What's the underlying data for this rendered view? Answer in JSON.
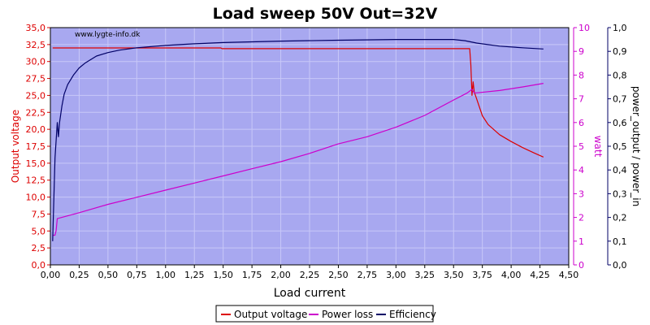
{
  "chart_data": {
    "type": "line",
    "title": "Load sweep 50V Out=32V",
    "watermark": "www.lygte-info.dk",
    "xlabel": "Load current",
    "xlim": [
      0,
      4.5
    ],
    "x_ticks": [
      "0,00",
      "0,25",
      "0,50",
      "0,75",
      "1,00",
      "1,25",
      "1,50",
      "1,75",
      "2,00",
      "2,25",
      "2,50",
      "2,75",
      "3,00",
      "3,25",
      "3,50",
      "3,75",
      "4,00",
      "4,25",
      "4,50"
    ],
    "axes": {
      "left": {
        "label": "Output voltage",
        "ylim": [
          0,
          35
        ],
        "color": "#dd0000",
        "ticks": [
          "0,0",
          "2,5",
          "5,0",
          "7,5",
          "10,0",
          "12,5",
          "15,0",
          "17,5",
          "20,0",
          "22,5",
          "25,0",
          "27,5",
          "30,0",
          "32,5",
          "35,0"
        ]
      },
      "right1": {
        "label": "watt",
        "ylim": [
          0,
          10
        ],
        "color": "#cc00cc",
        "ticks": [
          "0",
          "1",
          "2",
          "3",
          "4",
          "5",
          "6",
          "7",
          "8",
          "9",
          "10"
        ]
      },
      "right2": {
        "label": "power_output / power_in",
        "ylim": [
          0,
          1
        ],
        "color": "#000066",
        "ticks": [
          "0,0",
          "0,1",
          "0,2",
          "0,3",
          "0,4",
          "0,5",
          "0,6",
          "0,7",
          "0,8",
          "0,9",
          "1,0"
        ]
      }
    },
    "grid": true,
    "legend_position": "bottom-center",
    "colors": {
      "plot_background": "#a8a8f0",
      "grid": "#c8c8f8"
    },
    "series": [
      {
        "name": "Output voltage",
        "axis": "left",
        "color": "#dd0000",
        "x": [
          0.02,
          0.03,
          1.48,
          1.49,
          3.64,
          3.65,
          3.66,
          3.67,
          3.68,
          3.7,
          3.75,
          3.8,
          3.9,
          4.0,
          4.1,
          4.2,
          4.28
        ],
        "y": [
          32.0,
          32.0,
          32.0,
          31.9,
          31.9,
          29.5,
          25.0,
          27.0,
          25.5,
          24.5,
          22.0,
          20.7,
          19.2,
          18.2,
          17.3,
          16.5,
          15.9
        ]
      },
      {
        "name": "Power loss",
        "axis": "right1",
        "color": "#cc00cc",
        "x": [
          0.02,
          0.04,
          0.05,
          0.06,
          0.25,
          0.5,
          0.75,
          1.0,
          1.25,
          1.5,
          1.75,
          2.0,
          2.25,
          2.5,
          2.75,
          3.0,
          3.25,
          3.5,
          3.62,
          3.66,
          3.68,
          3.7,
          3.9,
          4.1,
          4.28
        ],
        "y": [
          1.25,
          1.25,
          1.45,
          1.95,
          2.2,
          2.55,
          2.85,
          3.15,
          3.45,
          3.75,
          4.05,
          4.35,
          4.7,
          5.1,
          5.4,
          5.8,
          6.3,
          6.95,
          7.25,
          7.4,
          7.25,
          7.25,
          7.35,
          7.5,
          7.65
        ]
      },
      {
        "name": "Efficiency",
        "axis": "right2",
        "color": "#000066",
        "x": [
          0.02,
          0.04,
          0.06,
          0.07,
          0.08,
          0.1,
          0.12,
          0.15,
          0.2,
          0.25,
          0.3,
          0.4,
          0.5,
          0.6,
          0.75,
          1.0,
          1.25,
          1.5,
          2.0,
          2.5,
          3.0,
          3.5,
          3.6,
          3.7,
          3.9,
          4.1,
          4.28
        ],
        "y": [
          0.1,
          0.45,
          0.6,
          0.54,
          0.6,
          0.67,
          0.72,
          0.76,
          0.8,
          0.83,
          0.85,
          0.88,
          0.895,
          0.905,
          0.915,
          0.925,
          0.932,
          0.937,
          0.943,
          0.947,
          0.95,
          0.95,
          0.945,
          0.935,
          0.922,
          0.915,
          0.91
        ]
      }
    ]
  }
}
